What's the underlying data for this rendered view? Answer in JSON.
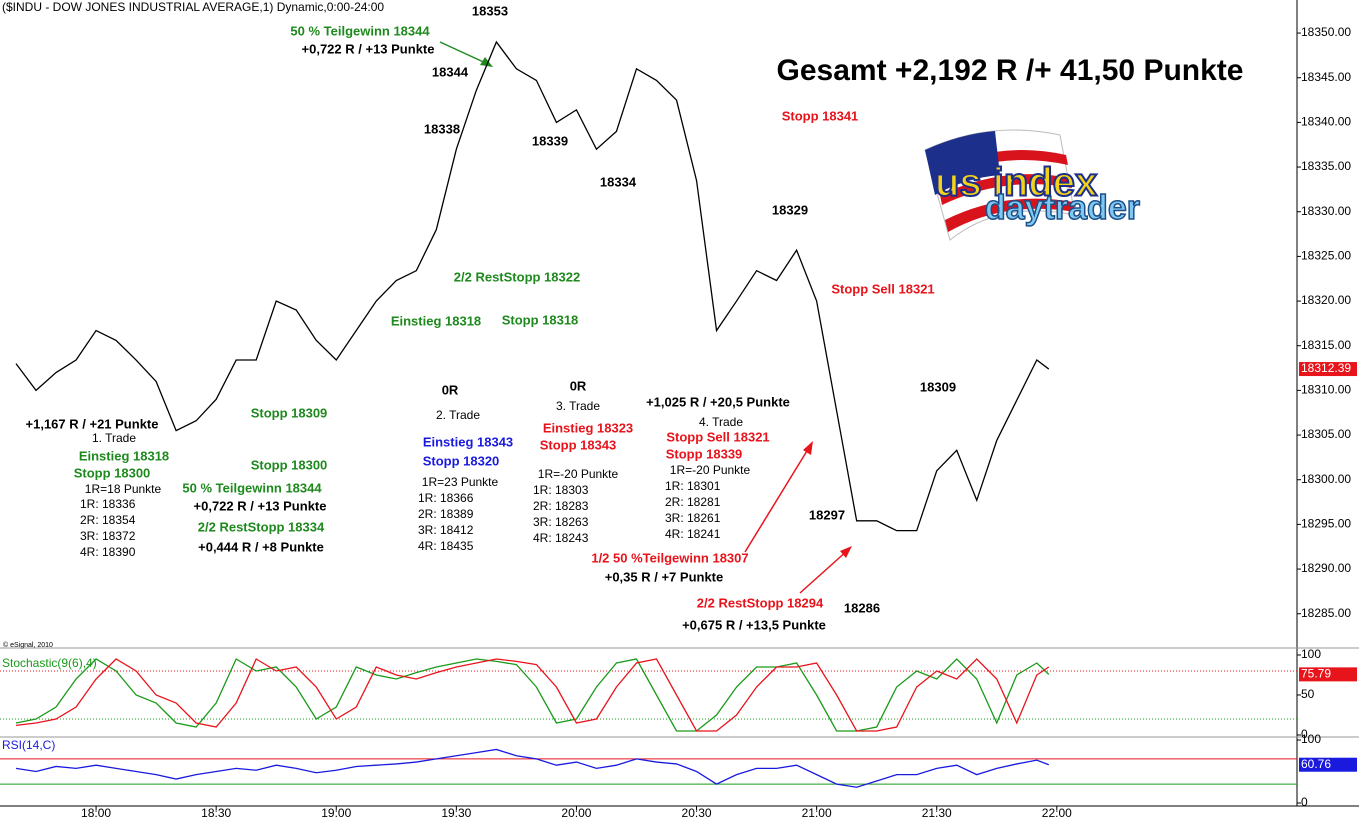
{
  "chart_data": [
    {
      "type": "line",
      "title": "($INDU - DOW JONES INDUSTRIAL AVERAGE,1) Dynamic,0:00-24:00",
      "headline": "Gesamt +2,192 R /+ 41,50 Punkte",
      "source": "© eSignal, 2010",
      "x": [
        1060,
        1065,
        1070,
        1075,
        1080,
        1085,
        1090,
        1095,
        1100,
        1105,
        1110,
        1115,
        1120,
        1125,
        1130,
        1135,
        1140,
        1145,
        1150,
        1155,
        1160,
        1165,
        1170,
        1175,
        1180,
        1185,
        1190,
        1195,
        1200,
        1205,
        1210,
        1215,
        1220,
        1225,
        1230,
        1235,
        1240,
        1245,
        1250,
        1255,
        1260,
        1265,
        1270,
        1275,
        1280,
        1285,
        1290,
        1295,
        1300,
        1305,
        1310,
        1315,
        1318
      ],
      "series": [
        {
          "color": "#000000",
          "values": [
            18313,
            18310,
            18312,
            18313.4,
            18316.7,
            18315.6,
            18313.4,
            18311,
            18305.5,
            18306.6,
            18309,
            18313.4,
            18313.4,
            18320,
            18319,
            18315.6,
            18313.4,
            18316.7,
            18320,
            18322.3,
            18323.4,
            18328,
            18337,
            18343.6,
            18349,
            18346,
            18344.7,
            18340,
            18341.4,
            18337,
            18339,
            18346,
            18344.7,
            18342.5,
            18333.5,
            18316.7,
            18320,
            18323.4,
            18322.3,
            18325.7,
            18320,
            18307.7,
            18295.4,
            18295.4,
            18294.3,
            18294.3,
            18301,
            18303.3,
            18297.7,
            18304.4,
            18308.9,
            18313.4,
            18312.39
          ]
        }
      ],
      "last_price": 18312.39,
      "xlim": [
        1056,
        1380
      ],
      "xticks": [
        {
          "value": 1080,
          "label": "18:00"
        },
        {
          "value": 1110,
          "label": "18:30"
        },
        {
          "value": 1140,
          "label": "19:00"
        },
        {
          "value": 1170,
          "label": "19:30"
        },
        {
          "value": 1200,
          "label": "20:00"
        },
        {
          "value": 1230,
          "label": "20:30"
        },
        {
          "value": 1260,
          "label": "21:00"
        },
        {
          "value": 1290,
          "label": "21:30"
        },
        {
          "value": 1320,
          "label": "22:00"
        }
      ],
      "ylim": [
        18281.5,
        18353.7
      ],
      "yticks": [
        {
          "value": 18285,
          "label": "18285.00"
        },
        {
          "value": 18290,
          "label": "18290.00"
        },
        {
          "value": 18295,
          "label": "18295.00"
        },
        {
          "value": 18300,
          "label": "18300.00"
        },
        {
          "value": 18305,
          "label": "18305.00"
        },
        {
          "value": 18310,
          "label": "18310.00"
        },
        {
          "value": 18315,
          "label": "18315.00"
        },
        {
          "value": 18320,
          "label": "18320.00"
        },
        {
          "value": 18325,
          "label": "18325.00"
        },
        {
          "value": 18330,
          "label": "18330.00"
        },
        {
          "value": 18335,
          "label": "18335.00"
        },
        {
          "value": 18340,
          "label": "18340.00"
        },
        {
          "value": 18345,
          "label": "18345.00"
        },
        {
          "value": 18350,
          "label": "18350.00"
        }
      ],
      "annotations": [
        {
          "text": "18353",
          "color": "#000000"
        },
        {
          "text": "50 % Teilgewinn 18344",
          "color": "#1e8a1e"
        },
        {
          "text": "+0,722 R / +13 Punkte",
          "color": "#000000"
        },
        {
          "text": "18344",
          "color": "#000000"
        },
        {
          "text": "18338",
          "color": "#000000"
        },
        {
          "text": "18339",
          "color": "#000000"
        },
        {
          "text": "18334",
          "color": "#000000"
        },
        {
          "text": "Stopp 18341",
          "color": "#e8141c"
        },
        {
          "text": "18329",
          "color": "#000000"
        },
        {
          "text": "2/2 RestStopp 18322",
          "color": "#1e8a1e"
        },
        {
          "text": "Stopp Sell 18321",
          "color": "#e8141c"
        },
        {
          "text": "Einstieg 18318",
          "color": "#1e8a1e"
        },
        {
          "text": "Stopp 18318",
          "color": "#1e8a1e"
        },
        {
          "text": "0R",
          "color": "#000000"
        },
        {
          "text": "0R",
          "color": "#000000"
        },
        {
          "text": "2. Trade",
          "color": "#000000"
        },
        {
          "text": "3. Trade",
          "color": "#000000"
        },
        {
          "text": "+1,025 R / +20,5 Punkte",
          "color": "#000000"
        },
        {
          "text": "4. Trade",
          "color": "#000000"
        },
        {
          "text": "18309",
          "color": "#000000"
        },
        {
          "text": "Stopp 18309",
          "color": "#1e8a1e"
        },
        {
          "text": "+1,167 R / +21 Punkte",
          "color": "#000000"
        },
        {
          "text": "1. Trade",
          "color": "#000000"
        },
        {
          "text": "Einstieg 18318",
          "color": "#1e8a1e"
        },
        {
          "text": "Stopp 18300",
          "color": "#1e8a1e"
        },
        {
          "text": "Stopp 18300",
          "color": "#1e8a1e"
        },
        {
          "text": "Einstieg 18343",
          "color": "#1a1adf"
        },
        {
          "text": "Stopp 18320",
          "color": "#1a1adf"
        },
        {
          "text": "Einstieg 18323",
          "color": "#e8141c"
        },
        {
          "text": "Stopp 18343",
          "color": "#e8141c"
        },
        {
          "text": "Stopp Sell 18321",
          "color": "#e8141c"
        },
        {
          "text": "Stopp 18339",
          "color": "#e8141c"
        },
        {
          "text": "1R=-20 Punkte",
          "color": "#000000"
        },
        {
          "text": "1R=-20 Punkte",
          "color": "#000000"
        },
        {
          "text": "1R=18 Punkte",
          "color": "#000000"
        },
        {
          "text": "50 % Teilgewinn 18344",
          "color": "#1e8a1e"
        },
        {
          "text": "1R=23 Punkte",
          "color": "#000000"
        },
        {
          "text": "1R: 18336",
          "color": "#000000"
        },
        {
          "text": "2R: 18354",
          "color": "#000000"
        },
        {
          "text": "3R: 18372",
          "color": "#000000"
        },
        {
          "text": "4R: 18390",
          "color": "#000000"
        },
        {
          "text": "+0,722 R / +13 Punkte",
          "color": "#000000"
        },
        {
          "text": "2/2 RestStopp 18334",
          "color": "#1e8a1e"
        },
        {
          "text": "+0,444 R / +8 Punkte",
          "color": "#000000"
        },
        {
          "text": "1R: 18366",
          "color": "#000000"
        },
        {
          "text": "2R: 18389",
          "color": "#000000"
        },
        {
          "text": "3R: 18412",
          "color": "#000000"
        },
        {
          "text": "4R: 18435",
          "color": "#000000"
        },
        {
          "text": "1R: 18303",
          "color": "#000000"
        },
        {
          "text": "2R: 18283",
          "color": "#000000"
        },
        {
          "text": "3R: 18263",
          "color": "#000000"
        },
        {
          "text": "4R: 18243",
          "color": "#000000"
        },
        {
          "text": "1R: 18301",
          "color": "#000000"
        },
        {
          "text": "2R: 18281",
          "color": "#000000"
        },
        {
          "text": "3R: 18261",
          "color": "#000000"
        },
        {
          "text": "4R: 18241",
          "color": "#000000"
        },
        {
          "text": "18297",
          "color": "#000000"
        },
        {
          "text": "1/2 50 %Teilgewinn 18307",
          "color": "#e8141c"
        },
        {
          "text": "+0,35 R / +7 Punkte",
          "color": "#000000"
        },
        {
          "text": "18286",
          "color": "#000000"
        },
        {
          "text": "2/2 RestStopp 18294",
          "color": "#e8141c"
        },
        {
          "text": "+0,675 R / +13,5 Punkte",
          "color": "#000000"
        }
      ]
    },
    {
      "type": "line",
      "title": "Stochastic(9(6),4)",
      "ylim": [
        0,
        100
      ],
      "yticks": [
        0,
        50,
        100
      ],
      "levels": [
        80,
        20
      ],
      "last_value": 75.79,
      "series": [
        {
          "color": "#1a9a1a",
          "values": [
            15,
            20,
            35,
            70,
            95,
            80,
            50,
            40,
            15,
            10,
            40,
            95,
            80,
            85,
            60,
            20,
            35,
            85,
            75,
            70,
            78,
            85,
            90,
            95,
            92,
            88,
            60,
            15,
            20,
            60,
            90,
            95,
            50,
            5,
            5,
            25,
            60,
            85,
            85,
            90,
            50,
            5,
            5,
            10,
            60,
            80,
            70,
            95,
            70,
            15,
            75,
            90,
            75.79
          ]
        },
        {
          "color": "#e8141c",
          "values": [
            12,
            15,
            20,
            35,
            70,
            95,
            80,
            50,
            40,
            15,
            10,
            40,
            95,
            80,
            85,
            60,
            20,
            35,
            85,
            75,
            70,
            78,
            85,
            90,
            95,
            92,
            88,
            60,
            15,
            20,
            60,
            90,
            95,
            50,
            5,
            5,
            25,
            60,
            85,
            85,
            90,
            50,
            5,
            5,
            10,
            60,
            80,
            70,
            95,
            70,
            15,
            75,
            85
          ]
        }
      ]
    },
    {
      "type": "line",
      "title": "RSI(14,C)",
      "ylim": [
        0,
        100
      ],
      "yticks": [
        0,
        100
      ],
      "levels": [
        70,
        30
      ],
      "last_value": 60.76,
      "series": [
        {
          "color": "#1a1adf",
          "values": [
            55,
            50,
            58,
            55,
            60,
            55,
            50,
            45,
            38,
            45,
            50,
            55,
            52,
            60,
            55,
            48,
            52,
            58,
            60,
            62,
            65,
            70,
            75,
            80,
            85,
            75,
            70,
            60,
            65,
            55,
            60,
            70,
            65,
            62,
            50,
            30,
            45,
            55,
            55,
            60,
            45,
            30,
            25,
            35,
            45,
            45,
            55,
            60,
            45,
            55,
            62,
            68,
            60.76
          ]
        }
      ]
    }
  ],
  "logo": {
    "lines": [
      "us index",
      "daytrader"
    ]
  }
}
